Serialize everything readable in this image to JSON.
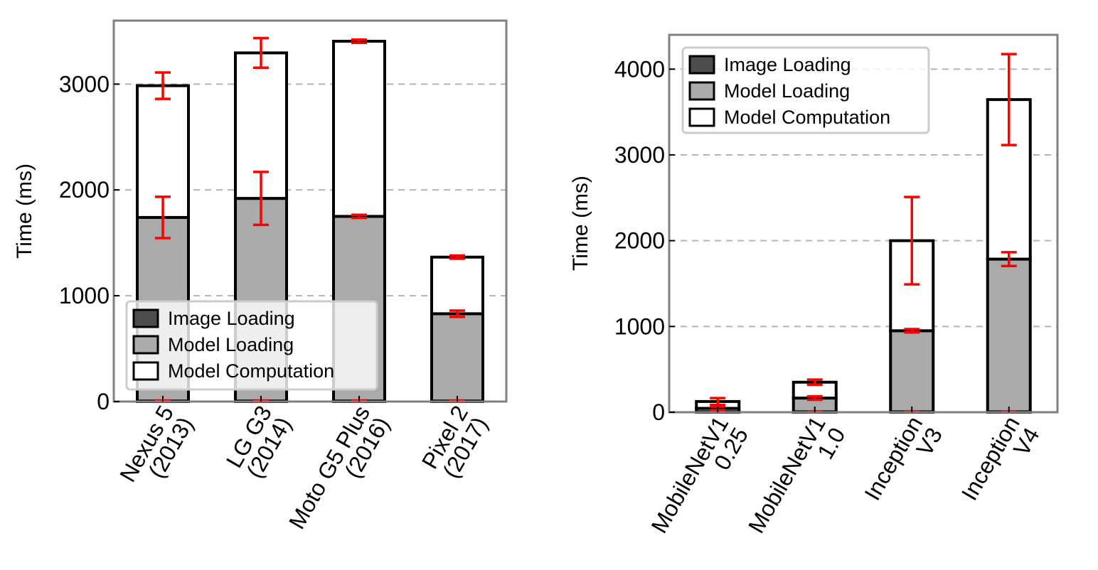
{
  "chart_data": [
    {
      "type": "bar",
      "stacked": true,
      "categories": [
        [
          "Nexus 5",
          "(2013)"
        ],
        [
          "LG G3",
          "(2014)"
        ],
        [
          "Moto G5 Plus",
          "(2016)"
        ],
        [
          "Pixel 2",
          "(2017)"
        ]
      ],
      "ylabel": "Time (ms)",
      "ylim": [
        0,
        3600
      ],
      "yticks": [
        0,
        1000,
        2000,
        3000
      ],
      "grid": "horizontal dashed",
      "legend_position": "bottom-left",
      "series": [
        {
          "name": "Image Loading",
          "color": "#4d4d4d",
          "values": [
            5,
            5,
            5,
            5
          ],
          "error": [
            5,
            5,
            5,
            5
          ]
        },
        {
          "name": "Model Loading",
          "color": "#aaaaaa",
          "values": [
            1735,
            1915,
            1745,
            825
          ],
          "error": [
            195,
            250,
            15,
            30
          ]
        },
        {
          "name": "Model Computation",
          "color": "#ffffff",
          "values": [
            1245,
            1375,
            1655,
            535
          ],
          "error": [
            125,
            140,
            15,
            15
          ]
        }
      ]
    },
    {
      "type": "bar",
      "stacked": true,
      "categories": [
        [
          "MobileNetV1",
          "0.25"
        ],
        [
          "MobileNetV1",
          "1.0"
        ],
        [
          "Inception",
          "V3"
        ],
        [
          "Inception",
          "V4"
        ]
      ],
      "ylabel": "Time (ms)",
      "ylim": [
        0,
        4400
      ],
      "yticks": [
        0,
        1000,
        2000,
        3000,
        4000
      ],
      "grid": "horizontal dashed",
      "legend_position": "top-left",
      "series": [
        {
          "name": "Image Loading",
          "color": "#4d4d4d",
          "values": [
            5,
            5,
            5,
            5
          ],
          "error": [
            5,
            5,
            5,
            5
          ]
        },
        {
          "name": "Model Loading",
          "color": "#aaaaaa",
          "values": [
            40,
            160,
            945,
            1780
          ],
          "error": [
            20,
            20,
            20,
            80
          ]
        },
        {
          "name": "Model Computation",
          "color": "#ffffff",
          "values": [
            80,
            185,
            1050,
            1860
          ],
          "error": [
            40,
            30,
            510,
            530
          ]
        }
      ]
    }
  ],
  "colors": {
    "frame": "#808080",
    "grid": "#b3b3b3",
    "error_bar": "#ff0000",
    "bar_edge": "#000000"
  }
}
